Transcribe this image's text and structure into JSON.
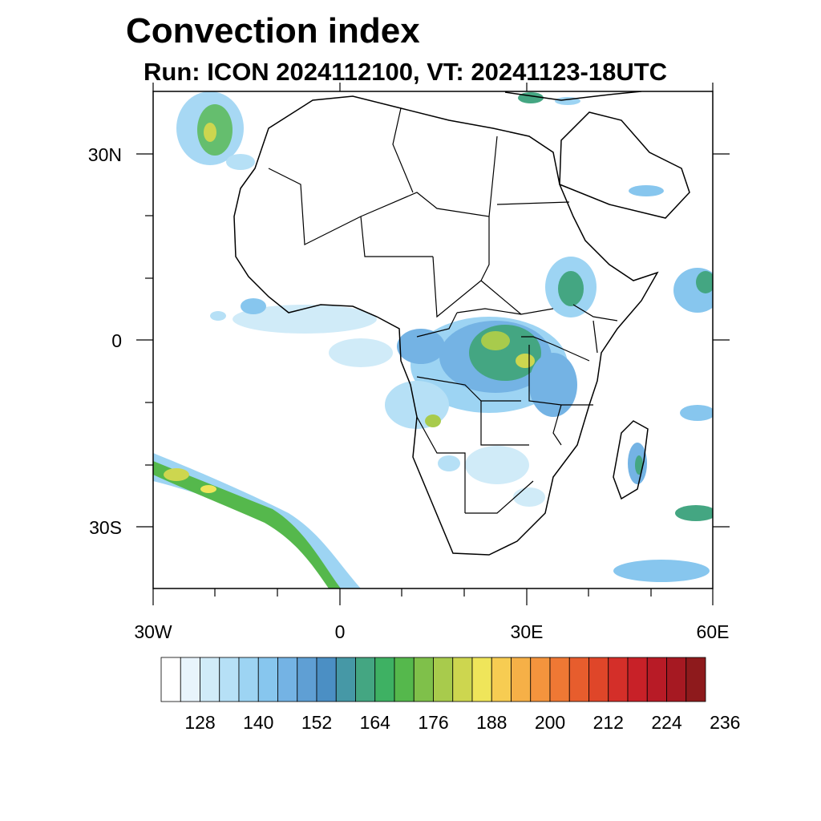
{
  "title": "Convection index",
  "subtitle": "Run: ICON 2024112100,  VT: 20241123-18UTC",
  "axes": {
    "lat_labels": [
      "30N",
      "0",
      "30S"
    ],
    "lon_labels": [
      "30W",
      "0",
      "30E",
      "60E"
    ]
  },
  "colorbar": {
    "labels": [
      "128",
      "140",
      "152",
      "164",
      "176",
      "188",
      "200",
      "212",
      "224",
      "236"
    ],
    "colors": [
      "#ffffff",
      "#e8f4fc",
      "#d0ebf8",
      "#b6e0f6",
      "#9dd4f3",
      "#87c6ee",
      "#74b3e4",
      "#5f9fd4",
      "#4b8fc4",
      "#4698a6",
      "#44a682",
      "#3eb163",
      "#55b84c",
      "#7fc04a",
      "#a8cb4c",
      "#cdd64f",
      "#efe55a",
      "#f7cc52",
      "#f6b047",
      "#f4943d",
      "#ef7834",
      "#e75d2d",
      "#df4629",
      "#d42f29",
      "#c82128",
      "#b81b26",
      "#a61922",
      "#8e1a1c"
    ]
  }
}
